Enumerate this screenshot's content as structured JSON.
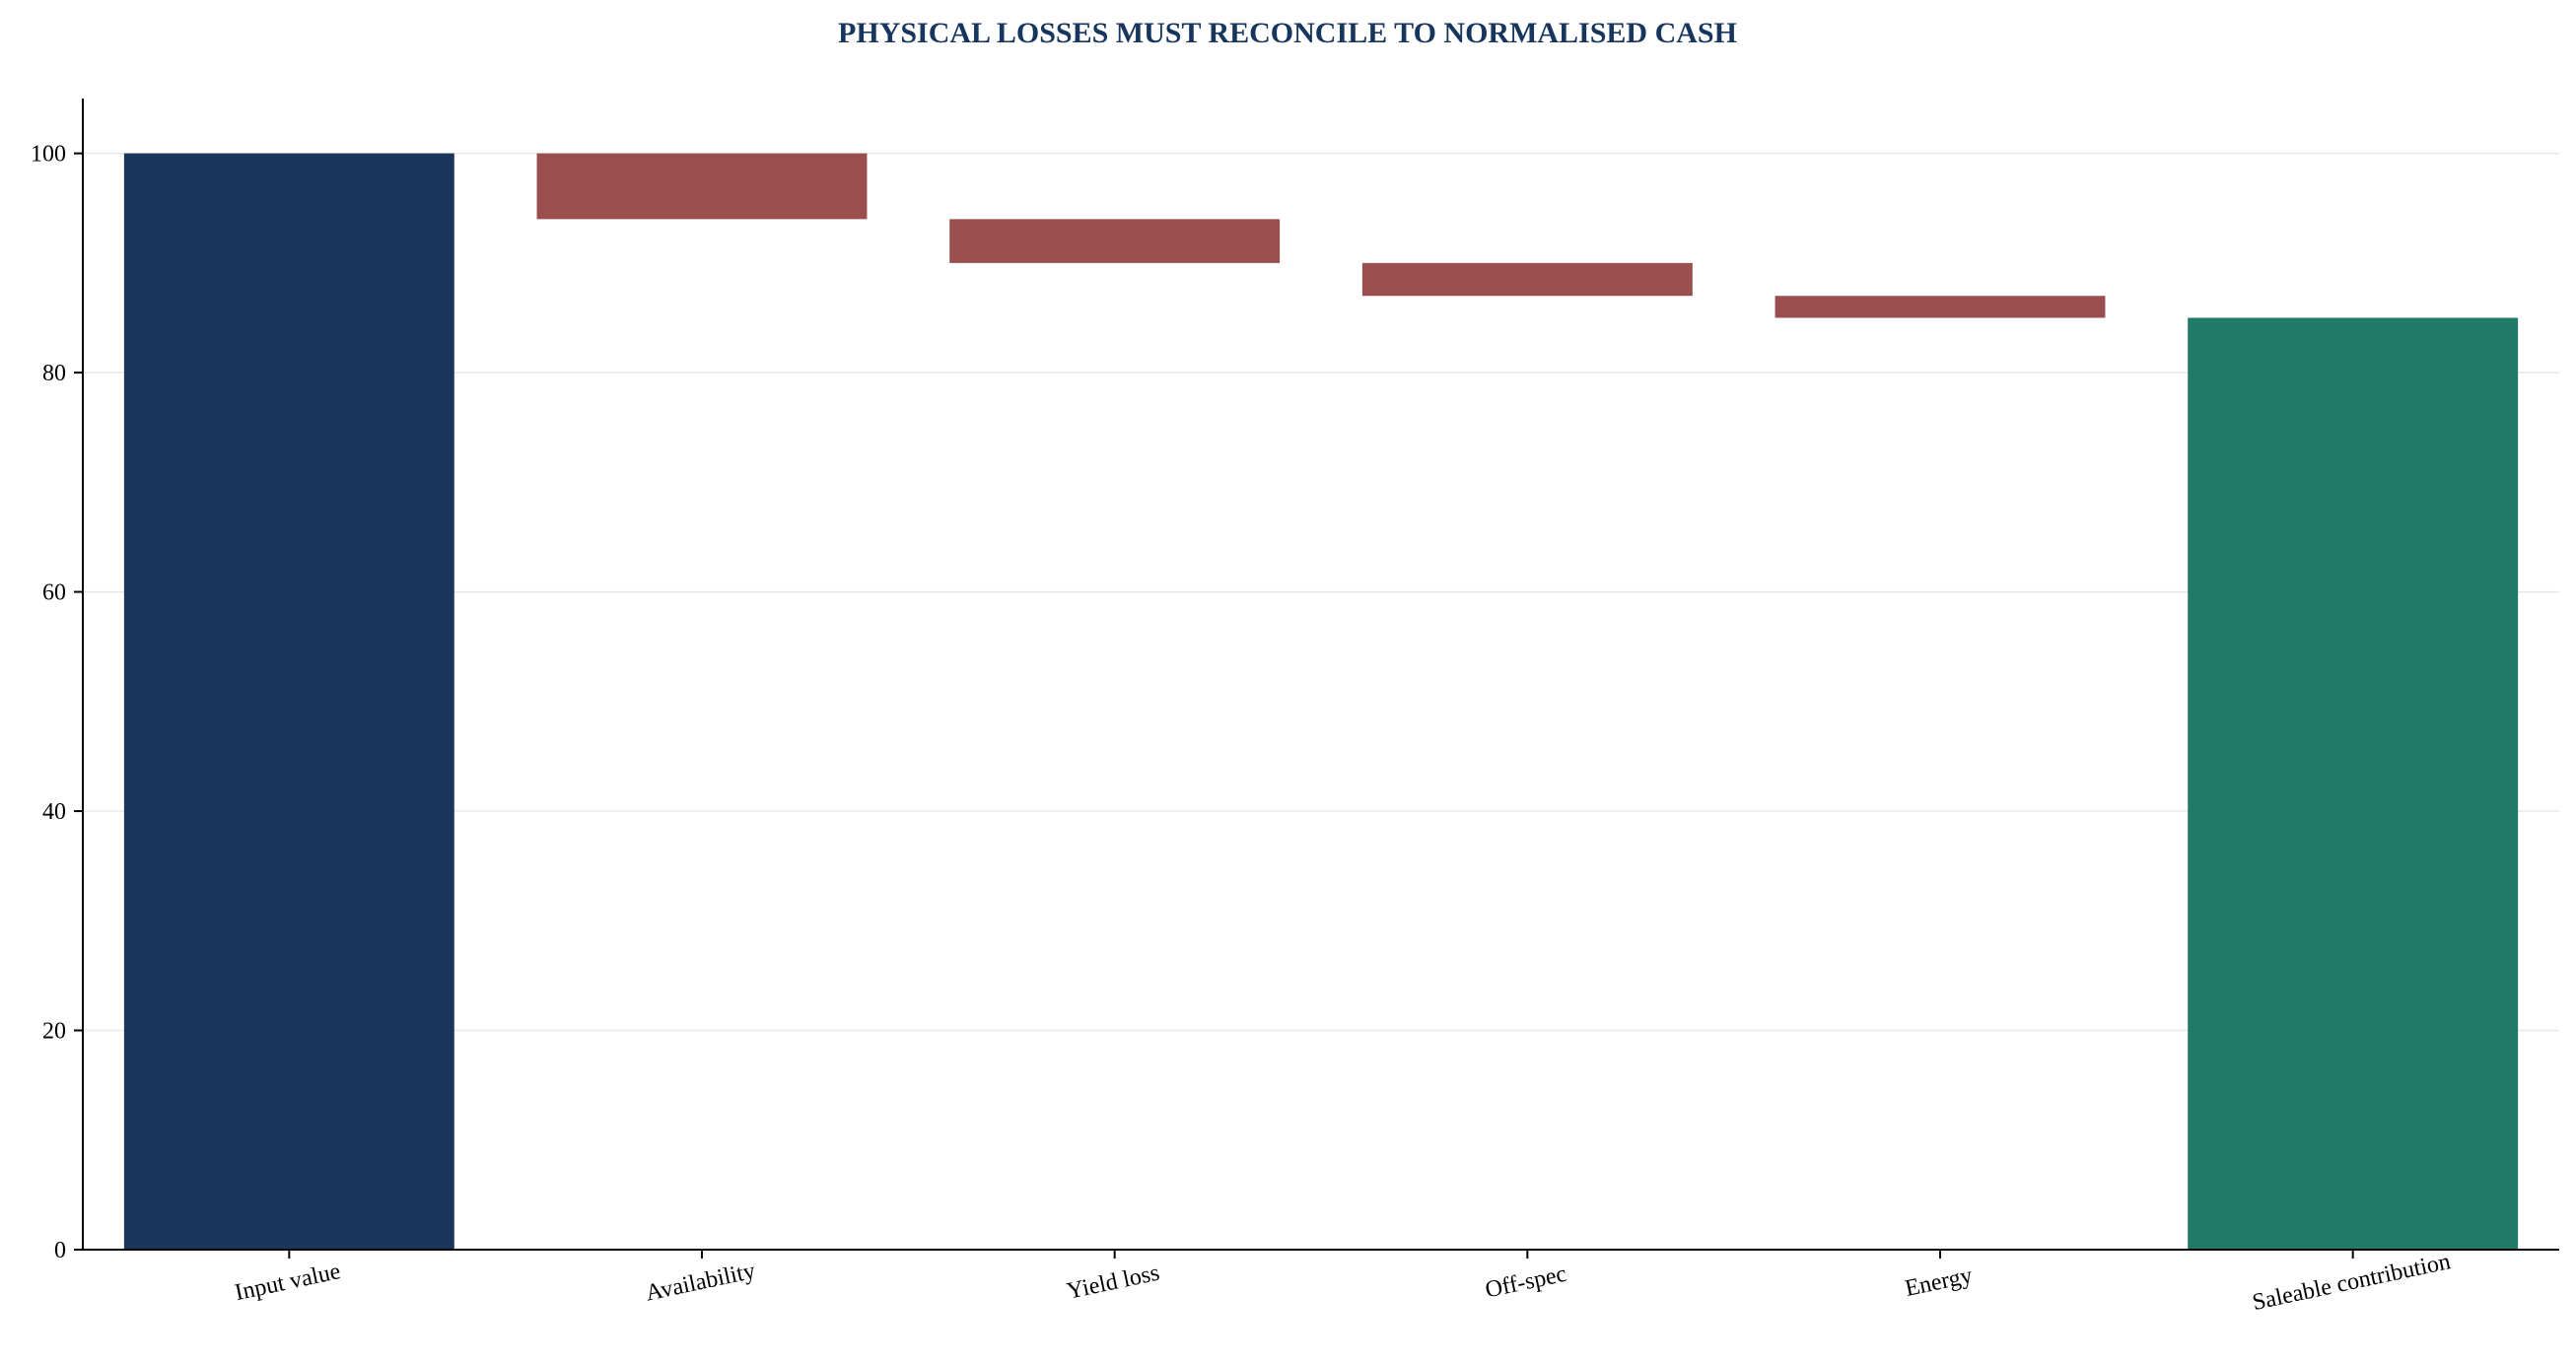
{
  "chart_data": {
    "type": "bar",
    "subtype": "waterfall",
    "title": "PHYSICAL LOSSES MUST RECONCILE TO NORMALISED CASH",
    "xlabel": "",
    "ylabel": "",
    "categories": [
      "Input value",
      "Availability",
      "Yield loss",
      "Off-spec",
      "Energy",
      "Saleable contribution"
    ],
    "values": [
      100,
      -6,
      -4,
      -3,
      -2,
      85
    ],
    "bar_kinds": [
      "total",
      "delta",
      "delta",
      "delta",
      "delta",
      "total"
    ],
    "ylim": [
      0,
      105
    ],
    "yticks": [
      0,
      20,
      40,
      60,
      80,
      100
    ],
    "grid": "horizontal",
    "legend": "none",
    "colors": {
      "start": "#1a365d",
      "decrease": "#9a4e4e",
      "end": "#217a68",
      "title": "#17365d"
    }
  }
}
